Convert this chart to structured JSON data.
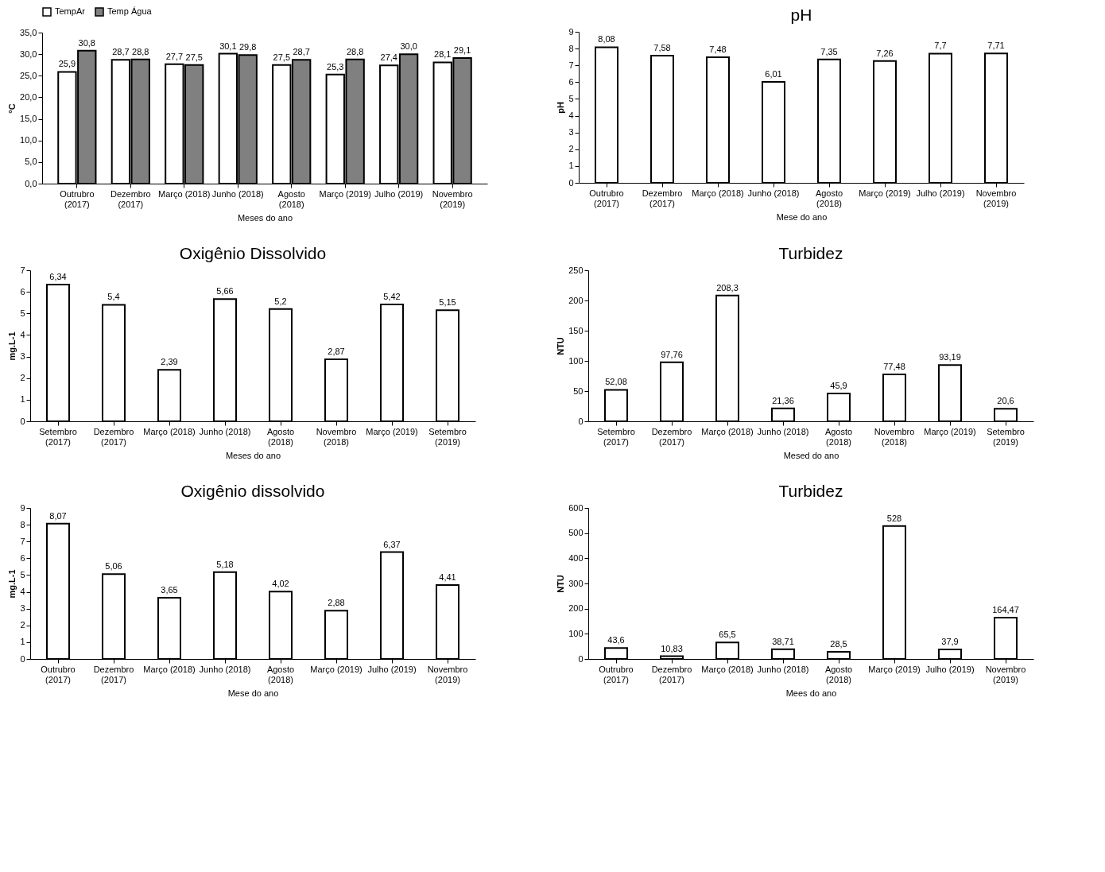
{
  "chart_data": [
    {
      "type": "bar",
      "ylabel": "°C",
      "xlabel": "Meses do ano",
      "legend": "top",
      "categories": [
        "Outrubro (2017)",
        "Dezembro (2017)",
        "Março (2018)",
        "Junho (2018)",
        "Agosto (2018)",
        "Março (2019)",
        "Julho (2019)",
        "Novembro (2019)"
      ],
      "series": [
        {
          "name": "TempAr",
          "color": "#ffffff",
          "values": [
            25.9,
            28.7,
            27.7,
            30.1,
            27.5,
            25.3,
            27.4,
            28.1
          ],
          "value_labels": [
            "25,9",
            "28,7",
            "27,7",
            "30,1",
            "27,5",
            "25,3",
            "27,4",
            "28,1"
          ]
        },
        {
          "name": "Temp Água",
          "color": "#808080",
          "values": [
            30.8,
            28.8,
            27.5,
            29.8,
            28.7,
            28.8,
            30.0,
            29.1
          ],
          "value_labels": [
            "30,8",
            "28,8",
            "27,5",
            "29,8",
            "28,7",
            "28,8",
            "30,0",
            "29,1"
          ]
        }
      ],
      "ylim": [
        0,
        35
      ],
      "yticks": [
        {
          "value": 0,
          "label": "0,0"
        },
        {
          "value": 5,
          "label": "5,0"
        },
        {
          "value": 10,
          "label": "10,0"
        },
        {
          "value": 15,
          "label": "15,0"
        },
        {
          "value": 20,
          "label": "20,0"
        },
        {
          "value": 25,
          "label": "25,0"
        },
        {
          "value": 30,
          "label": "30,0"
        },
        {
          "value": 35,
          "label": "35,0"
        }
      ],
      "grid": false
    },
    {
      "type": "bar",
      "title": "pH",
      "ylabel": "pH",
      "xlabel": "Mese do ano",
      "categories": [
        "Outrubro (2017)",
        "Dezembro (2017)",
        "Março (2018)",
        "Junho (2018)",
        "Agosto (2018)",
        "Março (2019)",
        "Julho (2019)",
        "Novembro (2019)"
      ],
      "values": [
        8.08,
        7.58,
        7.48,
        6.01,
        7.35,
        7.26,
        7.7,
        7.71
      ],
      "value_labels": [
        "8,08",
        "7,58",
        "7,48",
        "6,01",
        "7,35",
        "7,26",
        "7,7",
        "7,71"
      ],
      "color": "#ffffff",
      "ylim": [
        0,
        9
      ],
      "yticks": [
        0,
        1,
        2,
        3,
        4,
        5,
        6,
        7,
        8,
        9
      ],
      "grid": false
    },
    {
      "type": "bar",
      "title": "Oxigênio Dissolvido",
      "ylabel": "mg.L-1",
      "xlabel": "Meses do ano",
      "categories": [
        "Setembro (2017)",
        "Dezembro (2017)",
        "Março (2018)",
        "Junho (2018)",
        "Agosto (2018)",
        "Novembro (2018)",
        "Março (2019)",
        "Setembro (2019)"
      ],
      "values": [
        6.34,
        5.4,
        2.39,
        5.66,
        5.2,
        2.87,
        5.42,
        5.15
      ],
      "value_labels": [
        "6,34",
        "5,4",
        "2,39",
        "5,66",
        "5,2",
        "2,87",
        "5,42",
        "5,15"
      ],
      "color": "#ffffff",
      "ylim": [
        0,
        7
      ],
      "yticks": [
        0,
        1,
        2,
        3,
        4,
        5,
        6,
        7
      ],
      "grid": false
    },
    {
      "type": "bar",
      "title": "Turbidez",
      "ylabel": "NTU",
      "xlabel": "Mesed do ano",
      "categories": [
        "Setembro (2017)",
        "Dezembro (2017)",
        "Março (2018)",
        "Junho (2018)",
        "Agosto (2018)",
        "Novembro (2018)",
        "Março (2019)",
        "Setembro (2019)"
      ],
      "values": [
        52.08,
        97.76,
        208.3,
        21.36,
        45.9,
        77.48,
        93.19,
        20.6
      ],
      "value_labels": [
        "52,08",
        "97,76",
        "208,3",
        "21,36",
        "45,9",
        "77,48",
        "93,19",
        "20,6"
      ],
      "color": "#ffffff",
      "ylim": [
        0,
        250
      ],
      "yticks": [
        0,
        50,
        100,
        150,
        200,
        250
      ],
      "grid": false
    },
    {
      "type": "bar",
      "title": "Oxigênio dissolvido",
      "ylabel": "mg.L-1",
      "xlabel": "Mese do ano",
      "categories": [
        "Outrubro (2017)",
        "Dezembro (2017)",
        "Março (2018)",
        "Junho (2018)",
        "Agosto (2018)",
        "Março (2019)",
        "Julho (2019)",
        "Novembro (2019)"
      ],
      "values": [
        8.07,
        5.06,
        3.65,
        5.18,
        4.02,
        2.88,
        6.37,
        4.41
      ],
      "value_labels": [
        "8,07",
        "5,06",
        "3,65",
        "5,18",
        "4,02",
        "2,88",
        "6,37",
        "4,41"
      ],
      "color": "#ffffff",
      "ylim": [
        0,
        9
      ],
      "yticks": [
        0,
        1,
        2,
        3,
        4,
        5,
        6,
        7,
        8,
        9
      ],
      "grid": false
    },
    {
      "type": "bar",
      "title": "Turbidez",
      "ylabel": "NTU",
      "xlabel": "Mees do ano",
      "categories": [
        "Outrubro (2017)",
        "Dezembro (2017)",
        "Março (2018)",
        "Junho (2018)",
        "Agosto (2018)",
        "Março (2019)",
        "Julho (2019)",
        "Novembro (2019)"
      ],
      "values": [
        43.6,
        10.83,
        65.5,
        38.71,
        28.5,
        528,
        37.9,
        164.47
      ],
      "value_labels": [
        "43,6",
        "10,83",
        "65,5",
        "38,71",
        "28,5",
        "528",
        "37,9",
        "164,47"
      ],
      "color": "#ffffff",
      "ylim": [
        0,
        600
      ],
      "yticks": [
        0,
        100,
        200,
        300,
        400,
        500,
        600
      ],
      "grid": false
    }
  ]
}
